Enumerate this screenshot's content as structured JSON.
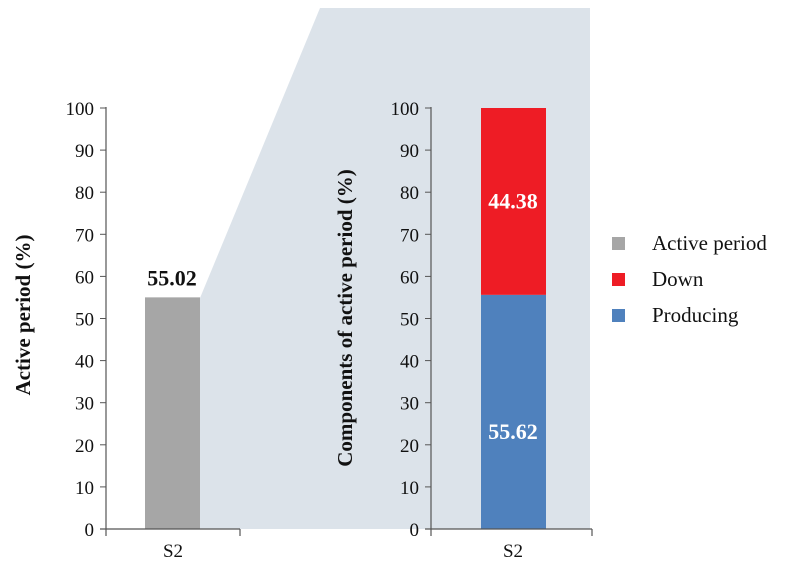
{
  "chart_data": [
    {
      "type": "bar",
      "categories": [
        "S2"
      ],
      "series": [
        {
          "name": "Active period",
          "values": [
            55.02
          ],
          "color": "#a6a6a6"
        }
      ],
      "data_labels": [
        "55.02"
      ],
      "ylabel": "Active period (%)",
      "xlabel": "",
      "ylim": [
        0,
        100
      ],
      "yticks": [
        "0",
        "10",
        "20",
        "30",
        "40",
        "50",
        "60",
        "70",
        "80",
        "90",
        "100"
      ]
    },
    {
      "type": "bar",
      "stacked": true,
      "categories": [
        "S2"
      ],
      "series": [
        {
          "name": "Producing",
          "values": [
            55.62
          ],
          "color": "#4f81bd"
        },
        {
          "name": "Down",
          "values": [
            44.38
          ],
          "color": "#ee1c25"
        }
      ],
      "data_labels": [
        "55.62",
        "44.38"
      ],
      "ylabel": "Components of active period (%)",
      "xlabel": "",
      "ylim": [
        0,
        100
      ],
      "yticks": [
        "0",
        "10",
        "20",
        "30",
        "40",
        "50",
        "60",
        "70",
        "80",
        "90",
        "100"
      ]
    }
  ],
  "legend": {
    "placement": "right",
    "items": [
      {
        "label": "Active period",
        "color": "#a6a6a6"
      },
      {
        "label": "Down",
        "color": "#ee1c25"
      },
      {
        "label": "Producing",
        "color": "#4f81bd"
      }
    ]
  },
  "connector_color": "#dce3ea"
}
